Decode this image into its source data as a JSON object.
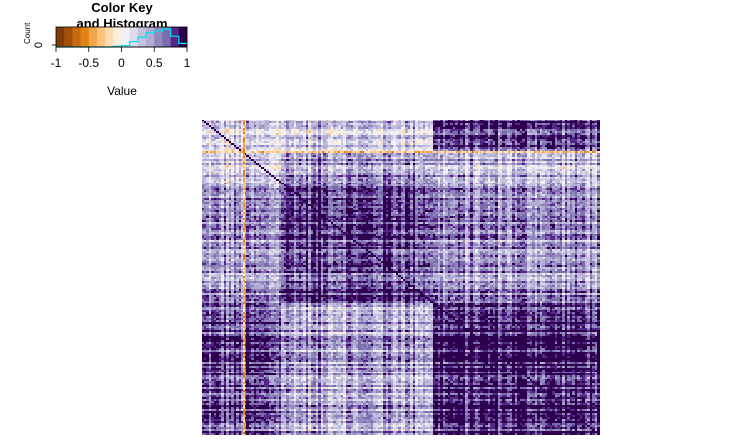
{
  "chart_data": [
    {
      "type": "histogram",
      "title": "Color Key\nand Histogram",
      "xlabel": "Value",
      "ylabel": "Count",
      "xlim": [
        -1,
        1
      ],
      "x_ticks": [
        "-1",
        "-0.5",
        "0",
        "0.5",
        "1"
      ],
      "y_ticks": [
        "0"
      ],
      "color_scale": {
        "breaks": [
          -1,
          -0.875,
          -0.75,
          -0.625,
          -0.5,
          -0.375,
          -0.25,
          -0.125,
          0,
          0.125,
          0.25,
          0.375,
          0.5,
          0.625,
          0.75,
          0.875,
          1
        ],
        "colors": [
          "#7f3b08",
          "#a35008",
          "#c56a10",
          "#e08214",
          "#f2a54a",
          "#fdc27d",
          "#fddcae",
          "#fbeede",
          "#f0f0f6",
          "#dcdcec",
          "#c4c1df",
          "#b2abd2",
          "#9288bd",
          "#7b6cad",
          "#542788",
          "#2d004b"
        ]
      },
      "histogram_outline_color": "#00e5ee",
      "histogram_counts": [
        0,
        0,
        0,
        0,
        0,
        0,
        0,
        0.4,
        0.8,
        3,
        5.5,
        8,
        9,
        10,
        6,
        2
      ]
    },
    {
      "type": "heatmap",
      "description_values": "correlation matrix, values in [-1, 1]",
      "value_range": [
        -1,
        1
      ],
      "block_structure": {
        "row_blocks": [
          {
            "from": 0.0,
            "to": 0.1,
            "values_by_col_block": [
              0.15,
              0.25,
              0.75
            ]
          },
          {
            "from": 0.1,
            "to": 0.18,
            "values_by_col_block": [
              0.25,
              0.5,
              0.35
            ]
          },
          {
            "from": 0.18,
            "to": 0.58,
            "values_by_col_block": [
              0.45,
              0.75,
              0.5
            ]
          },
          {
            "from": 0.58,
            "to": 1.0,
            "values_by_col_block": [
              0.7,
              0.45,
              0.85
            ]
          }
        ],
        "col_blocks": [
          {
            "from": 0.0,
            "to": 0.2
          },
          {
            "from": 0.2,
            "to": 0.58
          },
          {
            "from": 0.58,
            "to": 1.0
          }
        ],
        "highlight_line_rows": [
          0.1
        ],
        "highlight_line_cols": [
          0.105
        ]
      }
    }
  ]
}
